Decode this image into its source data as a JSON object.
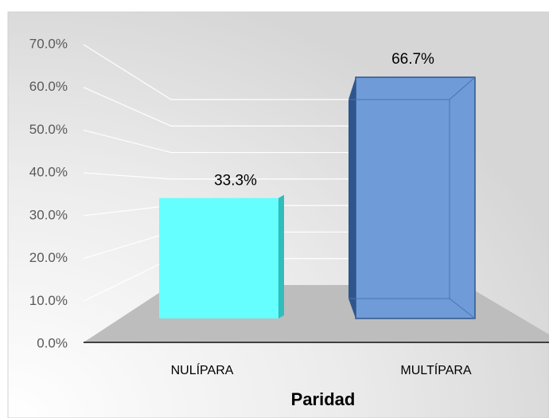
{
  "chart_data": {
    "type": "bar3d",
    "x_label": "Paridad",
    "categories": [
      "NULÍPARA",
      "MULTÍPARA"
    ],
    "values": [
      33.3,
      66.7
    ],
    "value_labels": [
      "33.3%",
      "66.7%"
    ],
    "colors": [
      "#66ffff",
      "#6f9bd8"
    ],
    "ylim": [
      0,
      70
    ],
    "yticks": [
      {
        "value": 0,
        "label": "0.0%"
      },
      {
        "value": 10,
        "label": "10.0%"
      },
      {
        "value": 20,
        "label": "20.0%"
      },
      {
        "value": 30,
        "label": "30.0%"
      },
      {
        "value": 40,
        "label": "40.0%"
      },
      {
        "value": 50,
        "label": "50.0%"
      },
      {
        "value": 60,
        "label": "60.0%"
      },
      {
        "value": 70,
        "label": "70.0%"
      }
    ],
    "grid": true
  }
}
